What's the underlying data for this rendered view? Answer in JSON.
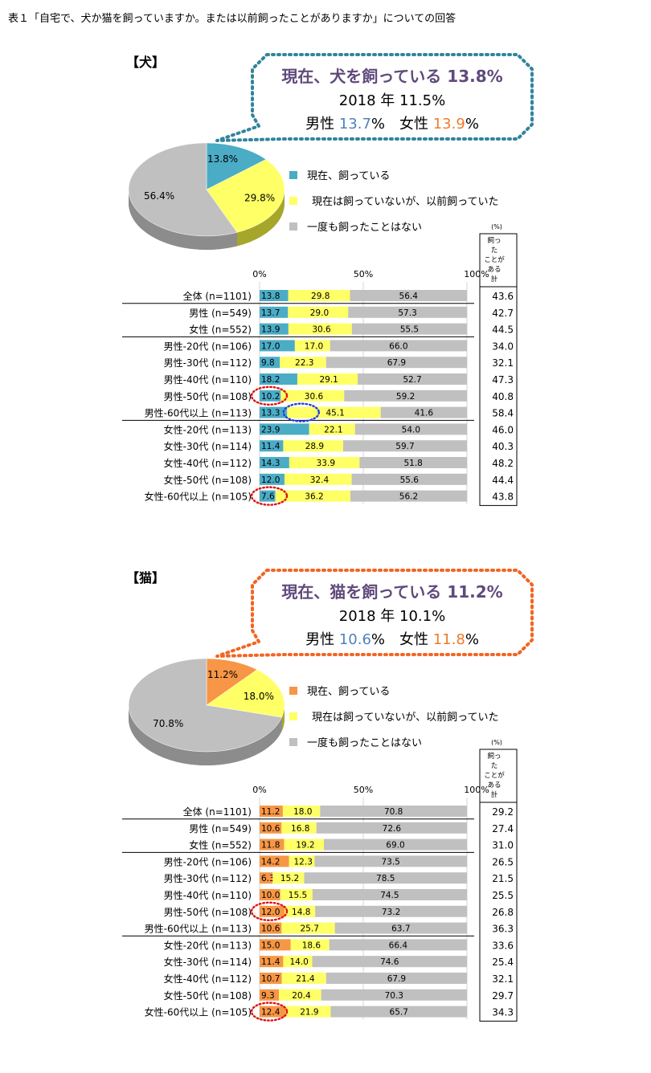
{
  "page_title": "表１「自宅で、犬か猫を飼っていますか。または以前飼ったことがありますか」についての回答",
  "colors": {
    "dog_now": "#4bacc6",
    "cat_now": "#f79646",
    "past": "#ffff66",
    "never": "#c0c0c0",
    "male_text": "#4f81bd",
    "female_text": "#f07a28",
    "headline_text": "#604a7b",
    "dog_bubble_border": "#31859c",
    "cat_bubble_border": "#f26522",
    "highlight_red": "#e01010",
    "highlight_blue": "#2040e0"
  },
  "legend": {
    "now": "現在、飼っている",
    "past": "現在は飼っていないが、以前飼っていた",
    "never": "一度も飼ったことはない"
  },
  "axis_ticks": [
    "0%",
    "50%",
    "100%"
  ],
  "pct_unit": "(%)",
  "ever_header": [
    "飼っ",
    "た",
    "ことが",
    "ある",
    "計"
  ],
  "sections": [
    {
      "id": "dog",
      "title": "【犬】",
      "bubble": {
        "headline": "現在、犬を飼っている 13.8%",
        "sub": "2018 年 11.5%",
        "male_label": "男性",
        "male_value": "13.7",
        "female_label": "女性",
        "female_value": "13.9",
        "pct_sign": "%"
      },
      "chart_data": {
        "type": "bar",
        "stacked": true,
        "orientation": "horizontal",
        "categories": [
          "全体 (n=1101)",
          "男性 (n=549)",
          "女性 (n=552)",
          "男性-20代 (n=106)",
          "男性-30代 (n=112)",
          "男性-40代 (n=110)",
          "男性-50代 (n=108)",
          "男性-60代以上 (n=113)",
          "女性-20代 (n=113)",
          "女性-30代 (n=114)",
          "女性-40代 (n=112)",
          "女性-50代 (n=108)",
          "女性-60代以上 (n=105)"
        ],
        "series": [
          {
            "key": "now",
            "values": [
              13.8,
              13.7,
              13.9,
              17.0,
              9.8,
              18.2,
              10.2,
              13.3,
              23.9,
              11.4,
              14.3,
              12.0,
              7.6
            ]
          },
          {
            "key": "past",
            "values": [
              29.8,
              29.0,
              30.6,
              17.0,
              22.3,
              29.1,
              30.6,
              45.1,
              22.1,
              28.9,
              33.9,
              32.4,
              36.2
            ]
          },
          {
            "key": "never",
            "values": [
              56.4,
              57.3,
              55.5,
              66.0,
              67.9,
              52.7,
              59.2,
              41.6,
              54.0,
              59.7,
              51.8,
              55.6,
              56.2
            ]
          }
        ],
        "ever_total": [
          "43.6",
          "42.7",
          "44.5",
          "34.0",
          "32.1",
          "47.3",
          "40.8",
          "58.4",
          "46.0",
          "40.3",
          "48.2",
          "44.4",
          "43.8"
        ],
        "xlim": [
          0,
          100
        ],
        "pie": [
          {
            "key": "now",
            "value": 13.8
          },
          {
            "key": "past",
            "value": 29.8
          },
          {
            "key": "never",
            "value": 56.4
          }
        ],
        "highlights": [
          {
            "row": 6,
            "series": 0,
            "color": "red"
          },
          {
            "row": 7,
            "series": 1,
            "color": "blue"
          },
          {
            "row": 12,
            "series": 0,
            "color": "red"
          }
        ]
      }
    },
    {
      "id": "cat",
      "title": "【猫】",
      "bubble": {
        "headline": "現在、猫を飼っている 11.2%",
        "sub": "2018 年 10.1%",
        "male_label": "男性",
        "male_value": "10.6",
        "female_label": "女性",
        "female_value": "11.8",
        "pct_sign": "%"
      },
      "chart_data": {
        "type": "bar",
        "stacked": true,
        "orientation": "horizontal",
        "categories": [
          "全体 (n=1101)",
          "男性 (n=549)",
          "女性 (n=552)",
          "男性-20代 (n=106)",
          "男性-30代 (n=112)",
          "男性-40代 (n=110)",
          "男性-50代 (n=108)",
          "男性-60代以上 (n=113)",
          "女性-20代 (n=113)",
          "女性-30代 (n=114)",
          "女性-40代 (n=112)",
          "女性-50代 (n=108)",
          "女性-60代以上 (n=105)"
        ],
        "series": [
          {
            "key": "now",
            "values": [
              11.2,
              10.6,
              11.8,
              14.2,
              6.3,
              10.0,
              12.0,
              10.6,
              15.0,
              11.4,
              10.7,
              9.3,
              12.4
            ]
          },
          {
            "key": "past",
            "values": [
              18.0,
              16.8,
              19.2,
              12.3,
              15.2,
              15.5,
              14.8,
              25.7,
              18.6,
              14.0,
              21.4,
              20.4,
              21.9
            ]
          },
          {
            "key": "never",
            "values": [
              70.8,
              72.6,
              69.0,
              73.5,
              78.5,
              74.5,
              73.2,
              63.7,
              66.4,
              74.6,
              67.9,
              70.3,
              65.7
            ]
          }
        ],
        "ever_total": [
          "29.2",
          "27.4",
          "31.0",
          "26.5",
          "21.5",
          "25.5",
          "26.8",
          "36.3",
          "33.6",
          "25.4",
          "32.1",
          "29.7",
          "34.3"
        ],
        "xlim": [
          0,
          100
        ],
        "pie": [
          {
            "key": "now",
            "value": 11.2
          },
          {
            "key": "past",
            "value": 18.0
          },
          {
            "key": "never",
            "value": 70.8
          }
        ],
        "highlights": [
          {
            "row": 6,
            "series": 0,
            "color": "red"
          },
          {
            "row": 12,
            "series": 0,
            "color": "red"
          }
        ]
      }
    }
  ]
}
